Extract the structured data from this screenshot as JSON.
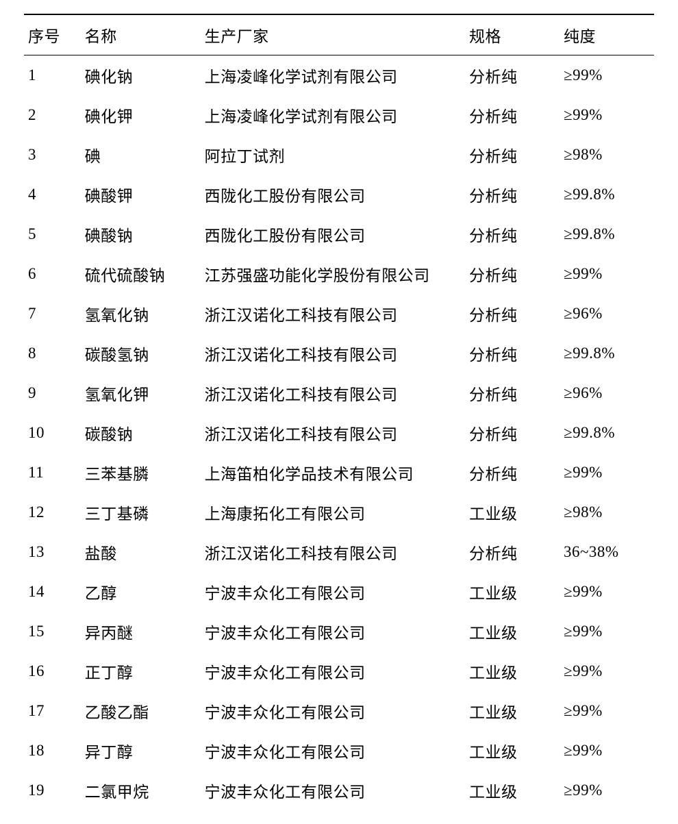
{
  "table": {
    "columns": {
      "index": "序号",
      "name": "名称",
      "manufacturer": "生产厂家",
      "spec": "规格",
      "purity": "纯度"
    },
    "rows": [
      {
        "index": "1",
        "name": "碘化钠",
        "manufacturer": "上海凌峰化学试剂有限公司",
        "spec": "分析纯",
        "purity": "≥99%"
      },
      {
        "index": "2",
        "name": "碘化钾",
        "manufacturer": "上海凌峰化学试剂有限公司",
        "spec": "分析纯",
        "purity": "≥99%"
      },
      {
        "index": "3",
        "name": "碘",
        "manufacturer": "阿拉丁试剂",
        "spec": "分析纯",
        "purity": "≥98%"
      },
      {
        "index": "4",
        "name": "碘酸钾",
        "manufacturer": "西陇化工股份有限公司",
        "spec": "分析纯",
        "purity": "≥99.8%"
      },
      {
        "index": "5",
        "name": "碘酸钠",
        "manufacturer": "西陇化工股份有限公司",
        "spec": "分析纯",
        "purity": "≥99.8%"
      },
      {
        "index": "6",
        "name": "硫代硫酸钠",
        "manufacturer": "江苏强盛功能化学股份有限公司",
        "spec": "分析纯",
        "purity": "≥99%"
      },
      {
        "index": "7",
        "name": "氢氧化钠",
        "manufacturer": "浙江汉诺化工科技有限公司",
        "spec": "分析纯",
        "purity": "≥96%"
      },
      {
        "index": "8",
        "name": "碳酸氢钠",
        "manufacturer": "浙江汉诺化工科技有限公司",
        "spec": "分析纯",
        "purity": "≥99.8%"
      },
      {
        "index": "9",
        "name": "氢氧化钾",
        "manufacturer": "浙江汉诺化工科技有限公司",
        "spec": "分析纯",
        "purity": "≥96%"
      },
      {
        "index": "10",
        "name": "碳酸钠",
        "manufacturer": "浙江汉诺化工科技有限公司",
        "spec": "分析纯",
        "purity": "≥99.8%"
      },
      {
        "index": "11",
        "name": "三苯基膦",
        "manufacturer": "上海笛柏化学品技术有限公司",
        "spec": "分析纯",
        "purity": "≥99%"
      },
      {
        "index": "12",
        "name": "三丁基磷",
        "manufacturer": "上海康拓化工有限公司",
        "spec": "工业级",
        "purity": "≥98%"
      },
      {
        "index": "13",
        "name": "盐酸",
        "manufacturer": "浙江汉诺化工科技有限公司",
        "spec": "分析纯",
        "purity": "36~38%"
      },
      {
        "index": "14",
        "name": "乙醇",
        "manufacturer": "宁波丰众化工有限公司",
        "spec": "工业级",
        "purity": "≥99%"
      },
      {
        "index": "15",
        "name": "异丙醚",
        "manufacturer": "宁波丰众化工有限公司",
        "spec": "工业级",
        "purity": "≥99%"
      },
      {
        "index": "16",
        "name": "正丁醇",
        "manufacturer": "宁波丰众化工有限公司",
        "spec": "工业级",
        "purity": "≥99%"
      },
      {
        "index": "17",
        "name": "乙酸乙酯",
        "manufacturer": "宁波丰众化工有限公司",
        "spec": "工业级",
        "purity": "≥99%"
      },
      {
        "index": "18",
        "name": "异丁醇",
        "manufacturer": "宁波丰众化工有限公司",
        "spec": "工业级",
        "purity": "≥99%"
      },
      {
        "index": "19",
        "name": "二氯甲烷",
        "manufacturer": "宁波丰众化工有限公司",
        "spec": "工业级",
        "purity": "≥99%"
      }
    ],
    "styling": {
      "background_color": "#ffffff",
      "border_color": "#000000",
      "text_color": "#000000",
      "font_family": "KaiTi",
      "font_size": 23,
      "header_top_border_width": 2,
      "header_bottom_border_width": 1.5,
      "col_widths_pct": [
        9,
        19,
        42,
        15,
        15
      ],
      "row_padding_v": 12,
      "row_padding_h": 6
    }
  }
}
